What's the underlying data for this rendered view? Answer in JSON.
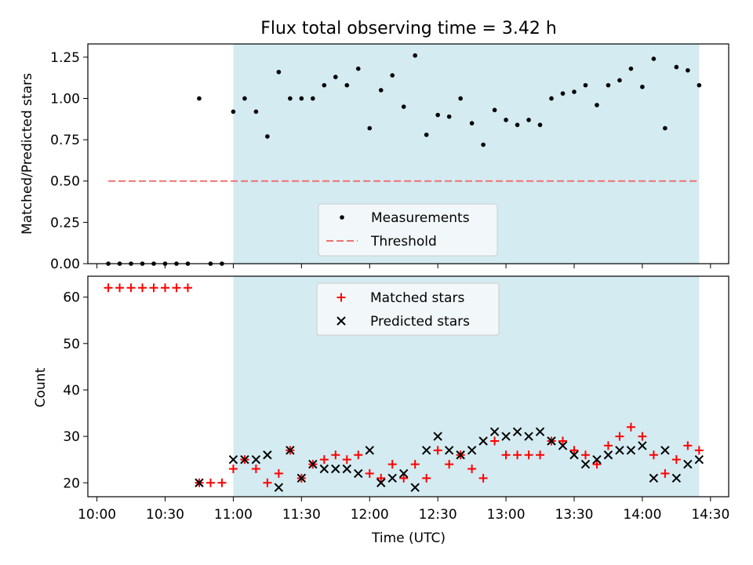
{
  "chart_data": [
    {
      "type": "scatter",
      "title": "Flux total observing time = 3.42 h",
      "ylabel": "Matched/Predicted stars",
      "xlabel": "",
      "xlim": [
        "09:56",
        "14:38"
      ],
      "ylim": [
        0.0,
        1.33
      ],
      "x_ticks": [
        "10:00",
        "10:30",
        "11:00",
        "11:30",
        "12:00",
        "12:30",
        "13:00",
        "13:30",
        "14:00",
        "14:30"
      ],
      "y_ticks": [
        "0.00",
        "0.25",
        "0.50",
        "0.75",
        "1.00",
        "1.25"
      ],
      "shaded_region": {
        "start": "11:00",
        "end": "14:25",
        "color": "#d3ebf1"
      },
      "legend": {
        "placement": "bottom-center",
        "entries": [
          "Measurements",
          "Threshold"
        ]
      },
      "threshold": {
        "name": "Threshold",
        "value": 0.5,
        "x_range": [
          "10:05",
          "14:25"
        ],
        "color": "#f07070"
      },
      "measurements": {
        "name": "Measurements",
        "color": "#000000",
        "x": [
          "10:05",
          "10:10",
          "10:15",
          "10:20",
          "10:25",
          "10:30",
          "10:35",
          "10:40",
          "10:45",
          "10:50",
          "10:55",
          "11:00",
          "11:05",
          "11:10",
          "11:15",
          "11:20",
          "11:25",
          "11:30",
          "11:35",
          "11:40",
          "11:45",
          "11:50",
          "11:55",
          "12:00",
          "12:05",
          "12:10",
          "12:15",
          "12:20",
          "12:25",
          "12:30",
          "12:35",
          "12:40",
          "12:45",
          "12:50",
          "12:55",
          "13:00",
          "13:05",
          "13:10",
          "13:15",
          "13:20",
          "13:25",
          "13:30",
          "13:35",
          "13:40",
          "13:45",
          "13:50",
          "13:55",
          "14:00",
          "14:05",
          "14:10",
          "14:15",
          "14:20",
          "14:25"
        ],
        "y": [
          0,
          0,
          0,
          0,
          0,
          0,
          0,
          0,
          1.0,
          0,
          0,
          0.92,
          1.0,
          0.92,
          0.77,
          1.16,
          1.0,
          1.0,
          1.0,
          1.08,
          1.13,
          1.08,
          1.18,
          0.82,
          1.05,
          1.14,
          0.95,
          1.26,
          0.78,
          0.9,
          0.89,
          1.0,
          0.85,
          0.72,
          0.93,
          0.87,
          0.84,
          0.87,
          0.84,
          1.0,
          1.03,
          1.04,
          1.08,
          0.96,
          1.08,
          1.11,
          1.18,
          1.07,
          1.24,
          0.82,
          1.19,
          1.17,
          1.08
        ]
      }
    },
    {
      "type": "scatter",
      "title": "",
      "ylabel": "Count",
      "xlabel": "Time (UTC)",
      "xlim": [
        "09:56",
        "14:38"
      ],
      "ylim": [
        17,
        64.5
      ],
      "x_ticks": [
        "10:00",
        "10:30",
        "11:00",
        "11:30",
        "12:00",
        "12:30",
        "13:00",
        "13:30",
        "14:00",
        "14:30"
      ],
      "y_ticks": [
        "20",
        "30",
        "40",
        "50",
        "60"
      ],
      "shaded_region": {
        "start": "11:00",
        "end": "14:25",
        "color": "#d3ebf1"
      },
      "legend": {
        "placement": "top-center",
        "entries": [
          "Matched stars",
          "Predicted stars"
        ]
      },
      "series": [
        {
          "name": "Matched stars",
          "marker": "+",
          "color": "#ff0000",
          "x": [
            "10:05",
            "10:10",
            "10:15",
            "10:20",
            "10:25",
            "10:30",
            "10:35",
            "10:40",
            "10:45",
            "10:50",
            "10:55",
            "11:00",
            "11:05",
            "11:10",
            "11:15",
            "11:20",
            "11:25",
            "11:30",
            "11:35",
            "11:40",
            "11:45",
            "11:50",
            "11:55",
            "12:00",
            "12:05",
            "12:10",
            "12:15",
            "12:20",
            "12:25",
            "12:30",
            "12:35",
            "12:40",
            "12:45",
            "12:50",
            "12:55",
            "13:00",
            "13:05",
            "13:10",
            "13:15",
            "13:20",
            "13:25",
            "13:30",
            "13:35",
            "13:40",
            "13:45",
            "13:50",
            "13:55",
            "14:00",
            "14:05",
            "14:10",
            "14:15",
            "14:20",
            "14:25"
          ],
          "y": [
            62,
            62,
            62,
            62,
            62,
            62,
            62,
            62,
            20,
            20,
            20,
            23,
            25,
            23,
            20,
            22,
            27,
            21,
            24,
            25,
            26,
            25,
            26,
            22,
            21,
            24,
            21,
            24,
            21,
            27,
            24,
            26,
            23,
            21,
            29,
            26,
            26,
            26,
            26,
            29,
            29,
            27,
            26,
            24,
            28,
            30,
            32,
            30,
            26,
            22,
            25,
            28,
            27
          ]
        },
        {
          "name": "Predicted stars",
          "marker": "x",
          "color": "#000000",
          "x": [
            "10:45",
            "11:00",
            "11:05",
            "11:10",
            "11:15",
            "11:20",
            "11:25",
            "11:30",
            "11:35",
            "11:40",
            "11:45",
            "11:50",
            "11:55",
            "12:00",
            "12:05",
            "12:10",
            "12:15",
            "12:20",
            "12:25",
            "12:30",
            "12:35",
            "12:40",
            "12:45",
            "12:50",
            "12:55",
            "13:00",
            "13:05",
            "13:10",
            "13:15",
            "13:20",
            "13:25",
            "13:30",
            "13:35",
            "13:40",
            "13:45",
            "13:50",
            "13:55",
            "14:00",
            "14:05",
            "14:10",
            "14:15",
            "14:20",
            "14:25"
          ],
          "y": [
            20,
            25,
            25,
            25,
            26,
            19,
            27,
            21,
            24,
            23,
            23,
            23,
            22,
            27,
            20,
            21,
            22,
            19,
            27,
            30,
            27,
            26,
            27,
            29,
            31,
            30,
            31,
            30,
            31,
            29,
            28,
            26,
            24,
            25,
            26,
            27,
            27,
            28,
            21,
            27,
            21,
            24,
            25
          ]
        }
      ]
    }
  ]
}
